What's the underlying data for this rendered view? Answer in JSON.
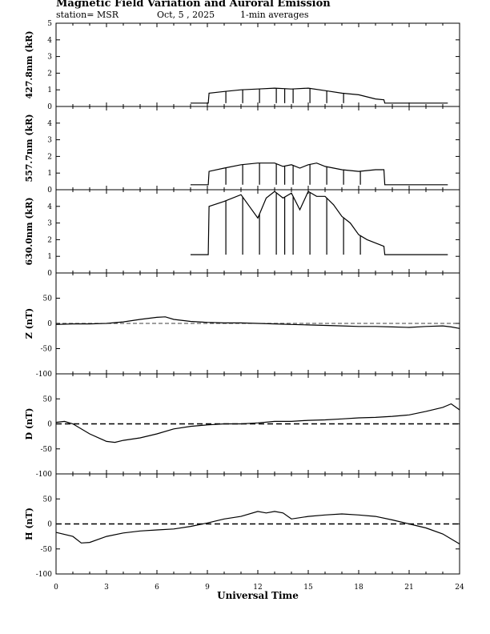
{
  "header": {
    "title": "Magnetic Field Variation and Auroral Emission",
    "station": "station= MSR",
    "date": "Oct, 5  , 2025",
    "averaging": "1-min averages"
  },
  "chart_data": {
    "type": "line",
    "xlabel": "Universal Time",
    "xlim": [
      0,
      24
    ],
    "xticks": [
      0,
      3,
      6,
      9,
      12,
      15,
      18,
      21,
      24
    ],
    "panels": [
      {
        "id": "p4278",
        "ylabel": "427.8nm (kR)",
        "ylim": [
          0,
          5
        ],
        "yticks": [
          0,
          1,
          2,
          3,
          4,
          5
        ],
        "zero_line": false,
        "x": [
          8,
          9.05,
          9.1,
          10,
          11,
          12,
          13,
          14,
          15,
          16,
          17,
          18,
          19,
          19.5,
          19.55,
          20,
          21,
          22,
          23.3
        ],
        "values": [
          0.2,
          0.2,
          0.8,
          0.9,
          1.0,
          1.05,
          1.1,
          1.05,
          1.1,
          0.95,
          0.8,
          0.7,
          0.45,
          0.4,
          0.2,
          0.2,
          0.2,
          0.2,
          0.2
        ],
        "spikes": [
          10.1,
          11.1,
          12.1,
          13.1,
          13.6,
          14.1,
          15.1,
          16.1,
          17.1
        ]
      },
      {
        "id": "p5577",
        "ylabel": "557.7nm (kR)",
        "ylim": [
          0,
          5
        ],
        "yticks": [
          0,
          1,
          2,
          3,
          4
        ],
        "zero_line": false,
        "x": [
          8,
          9.05,
          9.1,
          10,
          11,
          12,
          13,
          13.5,
          14,
          14.5,
          15,
          15.5,
          16,
          17,
          18,
          19,
          19.5,
          19.55,
          20,
          21,
          22,
          23.3
        ],
        "values": [
          0.3,
          0.3,
          1.1,
          1.3,
          1.5,
          1.6,
          1.6,
          1.4,
          1.5,
          1.3,
          1.5,
          1.6,
          1.4,
          1.2,
          1.1,
          1.2,
          1.2,
          0.3,
          0.3,
          0.3,
          0.3,
          0.3
        ],
        "spikes": [
          10.1,
          11.1,
          12.1,
          13.1,
          13.6,
          14.1,
          15.1,
          16.1,
          17.1,
          18.1
        ]
      },
      {
        "id": "p6300",
        "ylabel": "630.0nm (kR)",
        "ylim": [
          0,
          5
        ],
        "yticks": [
          0,
          1,
          2,
          3,
          4
        ],
        "zero_line": false,
        "x": [
          8,
          9.05,
          9.1,
          10,
          11,
          11.5,
          12,
          12.5,
          13,
          13.5,
          14,
          14.5,
          15,
          15.5,
          16,
          16.5,
          17,
          17.5,
          18,
          18.5,
          19,
          19.5,
          19.55,
          20,
          21,
          22,
          23.3
        ],
        "values": [
          1.1,
          1.1,
          4.0,
          4.3,
          4.7,
          4.0,
          3.3,
          4.5,
          4.9,
          4.5,
          4.8,
          3.8,
          4.9,
          4.6,
          4.6,
          4.1,
          3.4,
          3.0,
          2.3,
          2.0,
          1.8,
          1.6,
          1.1,
          1.1,
          1.1,
          1.1,
          1.1
        ],
        "spikes": [
          10.1,
          11.1,
          12.1,
          13.1,
          13.6,
          14.1,
          15.1,
          16.1,
          17.1,
          18.1
        ]
      },
      {
        "id": "pZ",
        "ylabel": "Z (nT)",
        "ylim": [
          -100,
          100
        ],
        "yticks": [
          -100,
          -50,
          0,
          50
        ],
        "zero_line": true,
        "x": [
          0,
          1,
          2,
          3,
          4,
          5,
          6,
          6.5,
          7,
          8,
          9,
          10,
          11,
          12,
          13,
          14,
          15,
          16,
          17,
          18,
          19,
          20,
          21,
          22,
          23,
          23.5,
          24
        ],
        "values": [
          -2,
          -1,
          -1,
          0,
          3,
          8,
          12,
          13,
          8,
          4,
          2,
          1,
          1,
          0,
          -1,
          -2,
          -3,
          -4,
          -5,
          -6,
          -6,
          -7,
          -8,
          -6,
          -5,
          -7,
          -10
        ]
      },
      {
        "id": "pD",
        "ylabel": "D (nT)",
        "ylim": [
          -100,
          100
        ],
        "yticks": [
          -100,
          -50,
          0,
          50
        ],
        "zero_line": true,
        "x": [
          0,
          0.5,
          1,
          2,
          3,
          3.5,
          4,
          5,
          6,
          7,
          8,
          9,
          10,
          11,
          12,
          13,
          14,
          15,
          16,
          17,
          18,
          19,
          20,
          21,
          22,
          23,
          23.5,
          24
        ],
        "values": [
          3,
          5,
          0,
          -20,
          -35,
          -37,
          -33,
          -28,
          -20,
          -10,
          -5,
          -2,
          0,
          0,
          2,
          5,
          5,
          7,
          8,
          10,
          12,
          13,
          15,
          18,
          25,
          33,
          40,
          28
        ]
      },
      {
        "id": "pH",
        "ylabel": "H (nT)",
        "ylim": [
          -100,
          100
        ],
        "yticks": [
          -100,
          -50,
          0,
          50
        ],
        "zero_line": true,
        "x": [
          0,
          1,
          1.5,
          2,
          3,
          4,
          5,
          6,
          7,
          8,
          9,
          10,
          11,
          12,
          12.5,
          13,
          13.5,
          14,
          15,
          16,
          17,
          18,
          19,
          20,
          21,
          22,
          23,
          24
        ],
        "values": [
          -17,
          -25,
          -38,
          -37,
          -25,
          -18,
          -14,
          -12,
          -10,
          -5,
          2,
          10,
          15,
          25,
          22,
          25,
          22,
          10,
          15,
          18,
          20,
          18,
          15,
          8,
          0,
          -8,
          -20,
          -40
        ]
      }
    ]
  }
}
